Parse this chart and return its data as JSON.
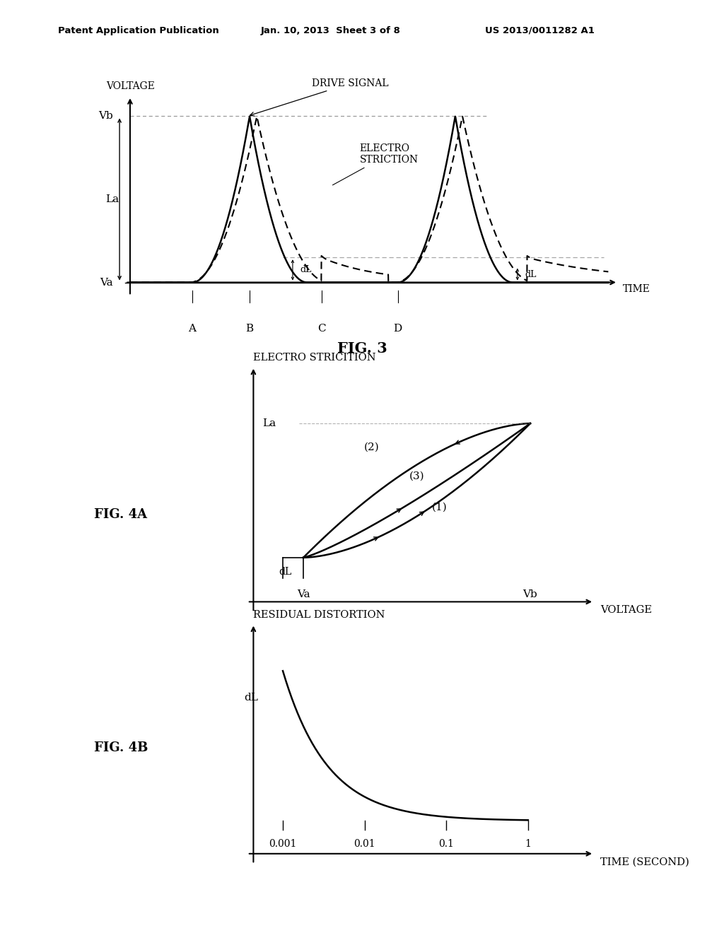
{
  "header_left": "Patent Application Publication",
  "header_center": "Jan. 10, 2013  Sheet 3 of 8",
  "header_right": "US 2013/0011282 A1",
  "fig3_title": "FIG. 3",
  "fig4a_title": "FIG. 4A",
  "fig4b_title": "FIG. 4B",
  "bg_color": "#ffffff",
  "line_color": "#000000"
}
